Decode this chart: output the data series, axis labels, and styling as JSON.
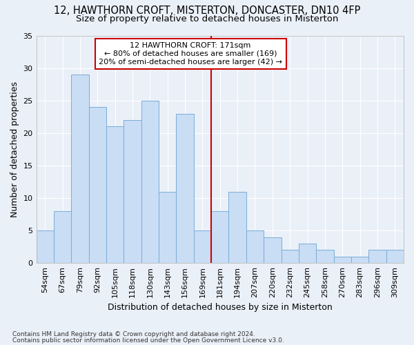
{
  "title": "12, HAWTHORN CROFT, MISTERTON, DONCASTER, DN10 4FP",
  "subtitle": "Size of property relative to detached houses in Misterton",
  "xlabel": "Distribution of detached houses by size in Misterton",
  "ylabel": "Number of detached properties",
  "categories": [
    "54sqm",
    "67sqm",
    "79sqm",
    "92sqm",
    "105sqm",
    "118sqm",
    "130sqm",
    "143sqm",
    "156sqm",
    "169sqm",
    "181sqm",
    "194sqm",
    "207sqm",
    "220sqm",
    "232sqm",
    "245sqm",
    "258sqm",
    "270sqm",
    "283sqm",
    "296sqm",
    "309sqm"
  ],
  "values": [
    5,
    8,
    29,
    24,
    21,
    22,
    25,
    11,
    23,
    5,
    8,
    11,
    5,
    4,
    2,
    3,
    2,
    1,
    1,
    2,
    2
  ],
  "bar_color": "#c9ddf5",
  "bar_edge_color": "#7aadd6",
  "highlight_line_index": 9,
  "highlight_line_color": "#cc0000",
  "annotation_box_color": "#cc0000",
  "annotation_lines": [
    "12 HAWTHORN CROFT: 171sqm",
    "← 80% of detached houses are smaller (169)",
    "20% of semi-detached houses are larger (42) →"
  ],
  "ylim": [
    0,
    35
  ],
  "yticks": [
    0,
    5,
    10,
    15,
    20,
    25,
    30,
    35
  ],
  "background_color": "#eaf0f8",
  "grid_color": "#ffffff",
  "title_fontsize": 10.5,
  "subtitle_fontsize": 9.5,
  "axis_label_fontsize": 9,
  "tick_fontsize": 8,
  "footnote1": "Contains HM Land Registry data © Crown copyright and database right 2024.",
  "footnote2": "Contains public sector information licensed under the Open Government Licence v3.0."
}
